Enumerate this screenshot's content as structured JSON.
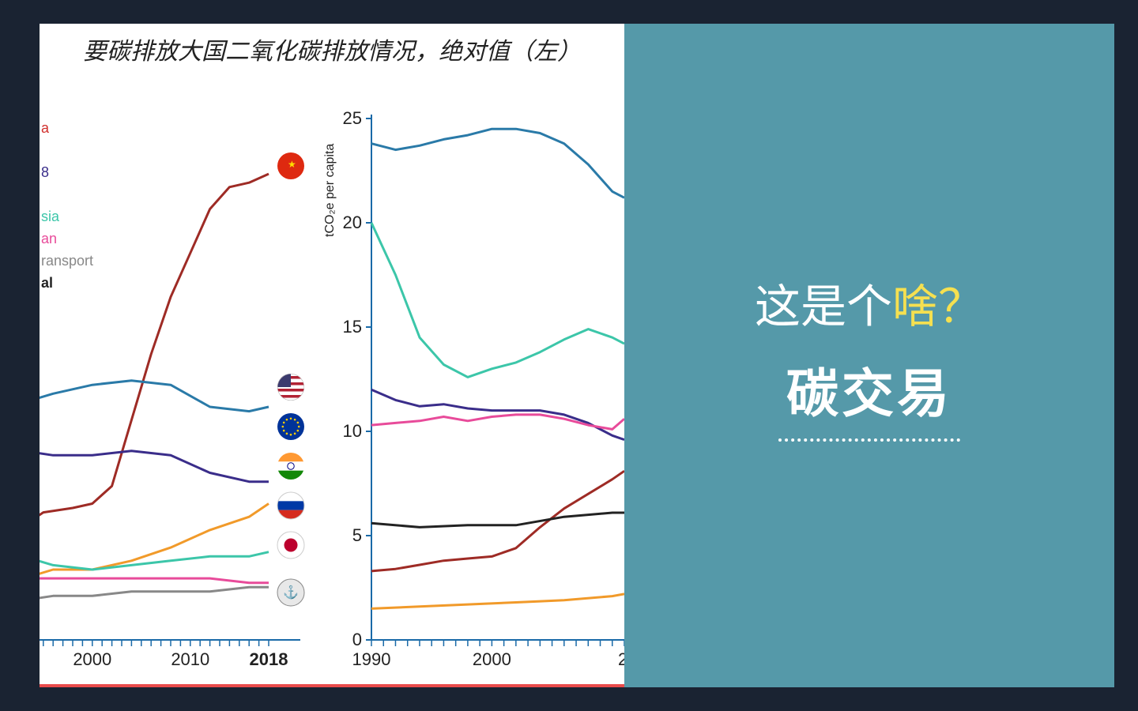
{
  "right_panel": {
    "question_prefix": "这是个",
    "question_highlight": "啥？",
    "main_title": "碳交易",
    "bg_color": "#5599a9",
    "text_color": "#ffffff",
    "highlight_color": "#f5e050"
  },
  "chart": {
    "title": "要碳排放大国二氧化碳排放情况，绝对值（左）",
    "title_fontsize": 30,
    "title_fontfamily": "KaiTi",
    "background_color": "#ffffff",
    "border_color": "#e94b4b",
    "left_chart": {
      "type": "line",
      "xlim": [
        1993,
        2018
      ],
      "xticks": [
        2000,
        2010,
        2018
      ],
      "xtick_labels": [
        "2000",
        "2010",
        "2018"
      ],
      "yrange_implied": [
        0,
        12
      ],
      "grid_color": "#e0e0e0",
      "axis_color": "#1a6aa8",
      "tick_color": "#1a6aa8",
      "label_fontsize": 20,
      "line_width": 3,
      "legend_box": {
        "items": [
          {
            "label": "a",
            "color": "#d12f2c"
          },
          {
            "label": "",
            "color": "#1a6aa8"
          },
          {
            "label": "8",
            "color": "#3a2d8a"
          },
          {
            "label": "",
            "color": "#f19a2a"
          },
          {
            "label": "sia",
            "color": "#3cc6a9"
          },
          {
            "label": "an",
            "color": "#e84b9a"
          },
          {
            "label": "ransport",
            "color": "#888888"
          },
          {
            "label": "al",
            "color": "#222222"
          }
        ],
        "fontsize": 18
      },
      "series": [
        {
          "name": "china",
          "color": "#9e2b25",
          "flag": "china",
          "x": [
            1993,
            1995,
            1998,
            2000,
            2002,
            2004,
            2006,
            2008,
            2010,
            2012,
            2014,
            2016,
            2018
          ],
          "y": [
            2.6,
            2.9,
            3.0,
            3.1,
            3.5,
            5.0,
            6.5,
            7.8,
            8.8,
            9.8,
            10.3,
            10.4,
            10.6
          ]
        },
        {
          "name": "usa",
          "color": "#2a7aa8",
          "flag": "usa",
          "x": [
            1993,
            1996,
            2000,
            2004,
            2008,
            2012,
            2016,
            2018
          ],
          "y": [
            5.4,
            5.6,
            5.8,
            5.9,
            5.8,
            5.3,
            5.2,
            5.3
          ]
        },
        {
          "name": "eu28",
          "color": "#3a2d8a",
          "flag": "eu",
          "x": [
            1993,
            1996,
            2000,
            2004,
            2008,
            2012,
            2016,
            2018
          ],
          "y": [
            4.3,
            4.2,
            4.2,
            4.3,
            4.2,
            3.8,
            3.6,
            3.6
          ]
        },
        {
          "name": "india",
          "color": "#f19a2a",
          "flag": "india",
          "x": [
            1993,
            1996,
            2000,
            2004,
            2008,
            2012,
            2016,
            2018
          ],
          "y": [
            1.4,
            1.6,
            1.6,
            1.8,
            2.1,
            2.5,
            2.8,
            3.1
          ]
        },
        {
          "name": "russia",
          "color": "#3cc6a9",
          "flag": "russia",
          "x": [
            1993,
            1996,
            2000,
            2004,
            2008,
            2012,
            2016,
            2018
          ],
          "y": [
            1.9,
            1.7,
            1.6,
            1.7,
            1.8,
            1.9,
            1.9,
            2.0
          ]
        },
        {
          "name": "japan",
          "color": "#e84b9a",
          "flag": "japan",
          "x": [
            1993,
            1996,
            2000,
            2004,
            2008,
            2012,
            2016,
            2018
          ],
          "y": [
            1.4,
            1.4,
            1.4,
            1.4,
            1.4,
            1.4,
            1.3,
            1.3
          ]
        },
        {
          "name": "transport",
          "color": "#888888",
          "flag": "ship",
          "x": [
            1993,
            1996,
            2000,
            2004,
            2008,
            2012,
            2016,
            2018
          ],
          "y": [
            0.9,
            1.0,
            1.0,
            1.1,
            1.1,
            1.1,
            1.2,
            1.2
          ]
        }
      ],
      "flags_x": 2019.5
    },
    "right_chart": {
      "type": "line",
      "ylabel": "tCO₂e per capita",
      "ylabel_fontsize": 16,
      "xlim": [
        1990,
        2011
      ],
      "xticks": [
        1990,
        2000
      ],
      "xtick_labels": [
        "1990",
        "2000"
      ],
      "ylim": [
        0,
        25
      ],
      "yticks": [
        0,
        5,
        10,
        15,
        20,
        25
      ],
      "grid": false,
      "axis_color": "#1a6aa8",
      "line_width": 3,
      "series": [
        {
          "name": "usa",
          "color": "#2a7aa8",
          "x": [
            1990,
            1992,
            1994,
            1996,
            1998,
            2000,
            2002,
            2004,
            2006,
            2008,
            2010,
            2011
          ],
          "y": [
            23.8,
            23.5,
            23.7,
            24.0,
            24.2,
            24.5,
            24.5,
            24.3,
            23.8,
            22.8,
            21.5,
            21.2
          ]
        },
        {
          "name": "russia",
          "color": "#3cc6a9",
          "x": [
            1990,
            1992,
            1994,
            1996,
            1998,
            2000,
            2002,
            2004,
            2006,
            2008,
            2010,
            2011
          ],
          "y": [
            20.0,
            17.5,
            14.5,
            13.2,
            12.6,
            13.0,
            13.3,
            13.8,
            14.4,
            14.9,
            14.5,
            14.2
          ]
        },
        {
          "name": "eu28",
          "color": "#3a2d8a",
          "x": [
            1990,
            1992,
            1994,
            1996,
            1998,
            2000,
            2002,
            2004,
            2006,
            2008,
            2010,
            2011
          ],
          "y": [
            12.0,
            11.5,
            11.2,
            11.3,
            11.1,
            11.0,
            11.0,
            11.0,
            10.8,
            10.4,
            9.8,
            9.6
          ]
        },
        {
          "name": "japan",
          "color": "#e84b9a",
          "x": [
            1990,
            1992,
            1994,
            1996,
            1998,
            2000,
            2002,
            2004,
            2006,
            2008,
            2010,
            2011
          ],
          "y": [
            10.3,
            10.4,
            10.5,
            10.7,
            10.5,
            10.7,
            10.8,
            10.8,
            10.6,
            10.3,
            10.1,
            10.6
          ]
        },
        {
          "name": "china",
          "color": "#9e2b25",
          "x": [
            1990,
            1992,
            1994,
            1996,
            1998,
            2000,
            2002,
            2004,
            2006,
            2008,
            2010,
            2011
          ],
          "y": [
            3.3,
            3.4,
            3.6,
            3.8,
            3.9,
            4.0,
            4.4,
            5.4,
            6.3,
            7.0,
            7.7,
            8.1
          ]
        },
        {
          "name": "total",
          "color": "#222222",
          "x": [
            1990,
            1994,
            1998,
            2002,
            2006,
            2010,
            2011
          ],
          "y": [
            5.6,
            5.4,
            5.5,
            5.5,
            5.9,
            6.1,
            6.1
          ]
        },
        {
          "name": "india",
          "color": "#f19a2a",
          "x": [
            1990,
            1994,
            1998,
            2002,
            2006,
            2010,
            2011
          ],
          "y": [
            1.5,
            1.6,
            1.7,
            1.8,
            1.9,
            2.1,
            2.2
          ]
        }
      ]
    }
  }
}
